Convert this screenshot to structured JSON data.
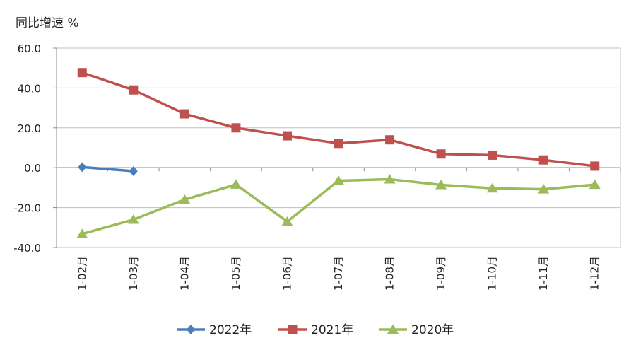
{
  "chart_data": {
    "type": "line",
    "title": "",
    "ylabel": "同比增速 %",
    "xlabel": "",
    "ylim": [
      -40,
      60
    ],
    "yticks": [
      60.0,
      40.0,
      20.0,
      0.0,
      -20.0,
      -40.0
    ],
    "ytick_labels": [
      "60.0",
      "40.0",
      "20.0",
      "0.0",
      "-20.0",
      "-40.0"
    ],
    "categories": [
      "1-02月",
      "1-03月",
      "1-04月",
      "1-05月",
      "1-06月",
      "1-07月",
      "1-08月",
      "1-09月",
      "1-10月",
      "1-11月",
      "1-12月"
    ],
    "grid": true,
    "legend_position": "bottom",
    "series": [
      {
        "name": "2022年",
        "color": "#4a7ebb",
        "marker": "diamond",
        "values": [
          0.3,
          -1.7,
          null,
          null,
          null,
          null,
          null,
          null,
          null,
          null,
          null
        ]
      },
      {
        "name": "2021年",
        "color": "#c0504d",
        "marker": "square",
        "values": [
          47.7,
          39.0,
          27.0,
          20.0,
          16.0,
          12.2,
          14.0,
          6.9,
          6.3,
          3.9,
          0.8
        ]
      },
      {
        "name": "2020年",
        "color": "#9bbb59",
        "marker": "triangle",
        "values": [
          -33.2,
          -26.0,
          -16.0,
          -8.4,
          -27.0,
          -6.5,
          -5.8,
          -8.6,
          -10.3,
          -10.8,
          -8.5
        ]
      }
    ]
  }
}
